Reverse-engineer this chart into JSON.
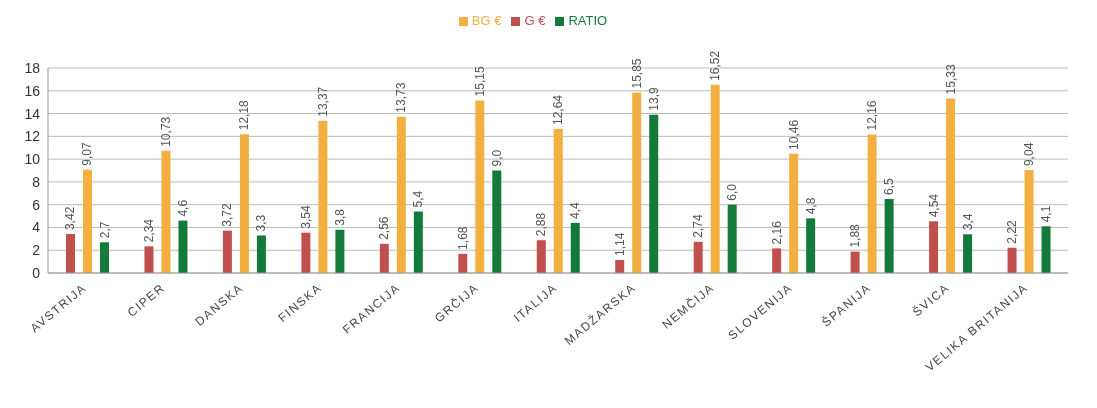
{
  "chart_data": {
    "type": "bar",
    "categories": [
      "AVSTRIJA",
      "CIPER",
      "DANSKA",
      "FINSKA",
      "FRANCIJA",
      "GRČIJA",
      "ITALIJA",
      "MADŽARSKA",
      "NEMČIJA",
      "SLOVENIJA",
      "ŠPANIJA",
      "ŠVICA",
      "VELIKA BRITANIJA"
    ],
    "series": [
      {
        "name": "G €",
        "color": "#c0504d",
        "values": [
          3.42,
          2.34,
          3.72,
          3.54,
          2.56,
          1.68,
          2.88,
          1.14,
          2.74,
          2.16,
          1.88,
          4.54,
          2.22
        ],
        "value_labels": [
          "3,42",
          "2,34",
          "3,72",
          "3,54",
          "2,56",
          "1,68",
          "2,88",
          "1,14",
          "2,74",
          "2,16",
          "1,88",
          "4,54",
          "2,22"
        ]
      },
      {
        "name": "BG €",
        "color": "#f2b040",
        "values": [
          9.07,
          10.73,
          12.18,
          13.37,
          13.73,
          15.15,
          12.64,
          15.85,
          16.52,
          10.46,
          12.16,
          15.33,
          9.04
        ],
        "value_labels": [
          "9,07",
          "10,73",
          "12,18",
          "13,37",
          "13,73",
          "15,15",
          "12,64",
          "15,85",
          "16,52",
          "10,46",
          "12,16",
          "15,33",
          "9,04"
        ]
      },
      {
        "name": "RATIO",
        "color": "#137a3a",
        "values": [
          2.7,
          4.6,
          3.3,
          3.8,
          5.4,
          9.0,
          4.4,
          13.9,
          6.0,
          4.8,
          6.5,
          3.4,
          4.1
        ],
        "value_labels": [
          "2,7",
          "4,6",
          "3,3",
          "3,8",
          "5,4",
          "9,0",
          "4,4",
          "13,9",
          "6,0",
          "4,8",
          "6,5",
          "3,4",
          "4,1"
        ]
      }
    ],
    "ylim": [
      0,
      18
    ],
    "yticks": [
      0,
      2,
      4,
      6,
      8,
      10,
      12,
      14,
      16,
      18
    ],
    "grid": "y",
    "legend": "top"
  }
}
